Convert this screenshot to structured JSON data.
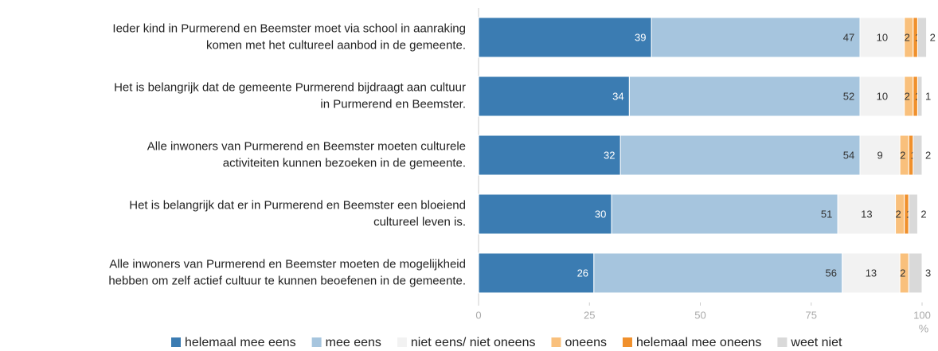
{
  "chart_data": {
    "type": "stacked-bar-horizontal",
    "categories": [
      [
        "Ieder kind in Purmerend en Beemster moet via school in aanraking",
        "komen met het cultureel aanbod in de gemeente."
      ],
      [
        "Het is belangrijk dat de gemeente Purmerend bijdraagt aan cultuur",
        "in Purmerend en Beemster."
      ],
      [
        "Alle inwoners van Purmerend en Beemster moeten culturele",
        "activiteiten kunnen bezoeken in de gemeente."
      ],
      [
        "Het is belangrijk dat er in Purmerend en Beemster een bloeiend",
        "cultureel leven is."
      ],
      [
        "Alle inwoners van Purmerend en Beemster moeten de mogelijkheid",
        "hebben om zelf actief cultuur te kunnen beoefenen in de gemeente."
      ]
    ],
    "series": [
      {
        "name": "helemaal mee eens",
        "color": "#3b7cb2",
        "values": [
          39,
          34,
          32,
          30,
          26
        ]
      },
      {
        "name": "mee eens",
        "color": "#a6c5de",
        "values": [
          47,
          52,
          54,
          51,
          56
        ]
      },
      {
        "name": "niet eens/ niet oneens",
        "color": "#f2f2f2",
        "values": [
          10,
          10,
          9,
          13,
          13
        ]
      },
      {
        "name": "oneens",
        "color": "#f9c07c",
        "values": [
          2,
          2,
          2,
          2,
          2
        ]
      },
      {
        "name": "helemaal mee oneens",
        "color": "#f0902c",
        "values": [
          1,
          1,
          1,
          1,
          0
        ]
      },
      {
        "name": "weet niet",
        "color": "#d9d9d9",
        "values": [
          2,
          1,
          2,
          2,
          3
        ]
      }
    ],
    "xlim": [
      0,
      100
    ],
    "xticks": [
      0,
      25,
      50,
      75,
      100
    ],
    "xlabel": "%",
    "legend": "bottom"
  }
}
